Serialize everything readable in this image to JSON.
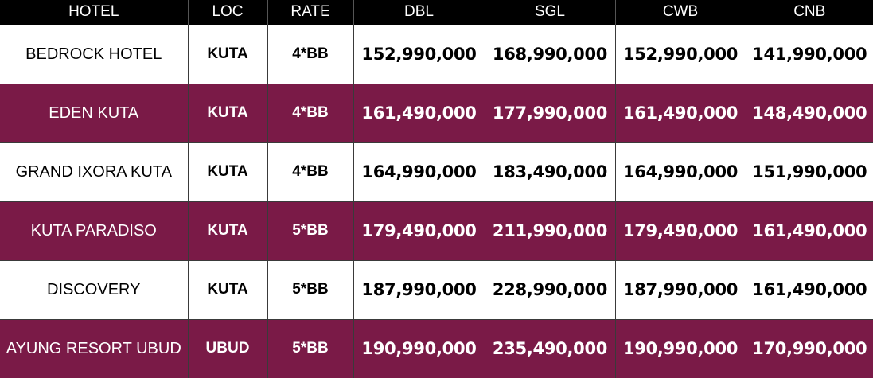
{
  "columns": {
    "hotel": "HOTEL",
    "loc": "LOC",
    "rate": "RATE",
    "dbl": "DBL",
    "sgl": "SGL",
    "cwb": "CWB",
    "cnb": "CNB"
  },
  "rows": [
    {
      "hotel": "BEDROCK HOTEL",
      "loc": "KUTA",
      "rate": "4*BB",
      "dbl": "152,990,000",
      "sgl": "168,990,000",
      "cwb": "152,990,000",
      "cnb": "141,990,000"
    },
    {
      "hotel": "EDEN KUTA",
      "loc": "KUTA",
      "rate": "4*BB",
      "dbl": "161,490,000",
      "sgl": "177,990,000",
      "cwb": "161,490,000",
      "cnb": "148,490,000"
    },
    {
      "hotel": "GRAND IXORA KUTA",
      "loc": "KUTA",
      "rate": "4*BB",
      "dbl": "164,990,000",
      "sgl": "183,490,000",
      "cwb": "164,990,000",
      "cnb": "151,990,000"
    },
    {
      "hotel": "KUTA PARADISO",
      "loc": "KUTA",
      "rate": "5*BB",
      "dbl": "179,490,000",
      "sgl": "211,990,000",
      "cwb": "179,490,000",
      "cnb": "161,490,000"
    },
    {
      "hotel": "DISCOVERY",
      "loc": "KUTA",
      "rate": "5*BB",
      "dbl": "187,990,000",
      "sgl": "228,990,000",
      "cwb": "187,990,000",
      "cnb": "161,490,000"
    },
    {
      "hotel": "AYUNG RESORT UBUD",
      "loc": "UBUD",
      "rate": "5*BB",
      "dbl": "190,990,000",
      "sgl": "235,490,000",
      "cwb": "190,990,000",
      "cnb": "170,990,000"
    }
  ],
  "colors": {
    "header_bg": "#000000",
    "header_text": "#ffffff",
    "row_light_bg": "#ffffff",
    "row_dark_bg": "#7a1a47"
  }
}
